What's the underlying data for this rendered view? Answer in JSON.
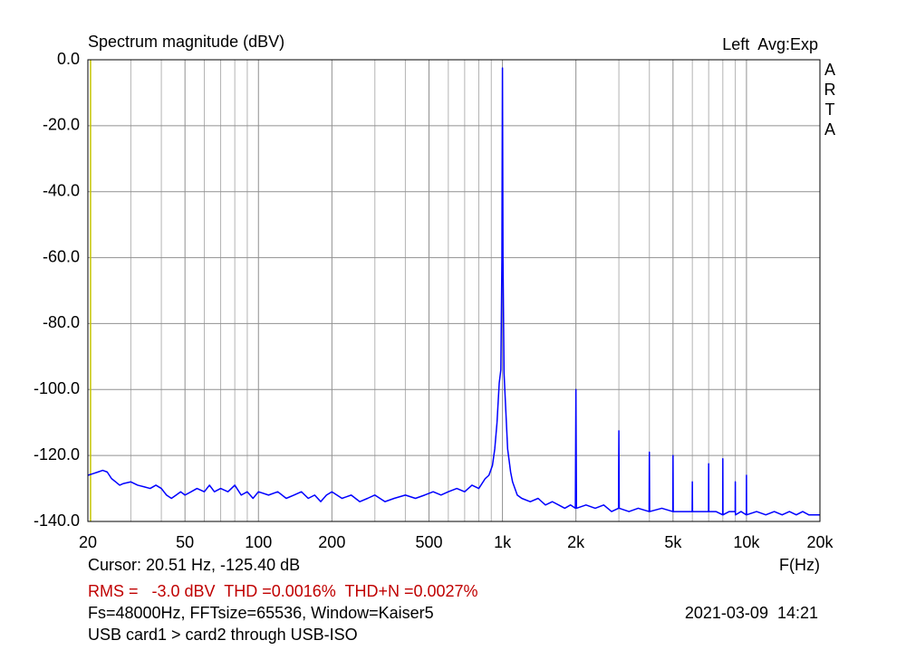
{
  "chart_data": {
    "type": "line",
    "title": "Spectrum magnitude (dBV)",
    "top_right": "Left  Avg:Exp",
    "side_label": "ARTA",
    "x_label": "F(Hz)",
    "log_x": true,
    "grid": true,
    "xlim": [
      20,
      20000
    ],
    "ylim": [
      -140,
      0
    ],
    "xticks": [
      20,
      50,
      100,
      200,
      500,
      {
        "value": 1000,
        "label": "1k"
      },
      {
        "value": 2000,
        "label": "2k"
      },
      {
        "value": 5000,
        "label": "5k"
      },
      {
        "value": 10000,
        "label": "10k"
      },
      {
        "value": 20000,
        "label": "20k"
      }
    ],
    "xminorticks": [
      30,
      40,
      60,
      70,
      80,
      90,
      300,
      400,
      600,
      700,
      800,
      900,
      3000,
      4000,
      6000,
      7000,
      8000,
      9000
    ],
    "yticks": [
      {
        "value": 0,
        "label": "0.0"
      },
      {
        "value": -20,
        "label": "-20.0"
      },
      {
        "value": -40,
        "label": "-40.0"
      },
      {
        "value": -60,
        "label": "-60.0"
      },
      {
        "value": -80,
        "label": "-80.0"
      },
      {
        "value": -100,
        "label": "-100.0"
      },
      {
        "value": -120,
        "label": "-120.0"
      },
      {
        "value": -140,
        "label": "-140.0"
      }
    ],
    "cursor_x": 20.51,
    "cursor_text": "Cursor: 20.51 Hz, -125.40 dB",
    "stats_text": "RMS =   -3.0 dBV  THD =0.0016%  THD+N =0.0027%",
    "settings_text": "Fs=48000Hz, FFTsize=65536, Window=Kaiser5",
    "date_text": "2021-03-09  14:21",
    "description": "USB card1 > card2 through USB-ISO",
    "x": [
      20,
      21,
      22,
      23,
      24,
      25,
      26,
      27,
      28,
      30,
      32,
      34,
      36,
      38,
      40,
      42,
      44,
      46,
      48,
      50,
      53,
      56,
      60,
      63,
      66,
      70,
      75,
      80,
      85,
      90,
      95,
      100,
      110,
      120,
      130,
      140,
      150,
      160,
      170,
      180,
      190,
      200,
      220,
      240,
      260,
      280,
      300,
      330,
      360,
      400,
      440,
      480,
      520,
      560,
      600,
      650,
      700,
      750,
      800,
      850,
      880,
      910,
      930,
      950,
      970,
      985,
      995,
      1000,
      1005,
      1015,
      1030,
      1050,
      1080,
      1100,
      1150,
      1200,
      1300,
      1400,
      1500,
      1600,
      1700,
      1800,
      1900,
      1990,
      2000,
      2010,
      2200,
      2400,
      2600,
      2800,
      2990,
      3000,
      3010,
      3300,
      3600,
      3990,
      4000,
      4010,
      4500,
      4990,
      5000,
      5010,
      5500,
      5990,
      6000,
      6010,
      6500,
      6990,
      7000,
      7010,
      7500,
      7990,
      8000,
      8010,
      8500,
      8990,
      9000,
      9010,
      9500,
      9990,
      10000,
      10010,
      11000,
      12000,
      13000,
      14000,
      15000,
      16000,
      17000,
      18000,
      19000,
      20000
    ],
    "series": [
      {
        "name": "Left",
        "color": "#0000ff",
        "values": [
          -126,
          -125.5,
          -125,
          -124.5,
          -125,
          -127,
          -128,
          -129,
          -128.5,
          -128,
          -129,
          -129.5,
          -130,
          -129,
          -130,
          -132,
          -133,
          -132,
          -131,
          -132,
          -131,
          -130,
          -131,
          -129,
          -131,
          -130,
          -131,
          -129,
          -132,
          -131,
          -133,
          -131,
          -132,
          -131,
          -133,
          -132,
          -131,
          -133,
          -132,
          -134,
          -132,
          -131,
          -133,
          -132,
          -134,
          -133,
          -132,
          -134,
          -133,
          -132,
          -133,
          -132,
          -131,
          -132,
          -131,
          -130,
          -131,
          -129,
          -130,
          -127,
          -126,
          -123,
          -118,
          -110,
          -98,
          -94,
          -60,
          -2.5,
          -60,
          -95,
          -105,
          -118,
          -125,
          -128,
          -132,
          -133,
          -134,
          -133,
          -135,
          -134,
          -135,
          -136,
          -135,
          -136,
          -100,
          -136,
          -135,
          -136,
          -135,
          -137,
          -136,
          -112.5,
          -136,
          -137,
          -136,
          -137,
          -119,
          -137,
          -136,
          -137,
          -120,
          -137,
          -137,
          -137,
          -128,
          -137,
          -137,
          -137,
          -122.5,
          -137,
          -137,
          -138,
          -121,
          -138,
          -137,
          -137,
          -128,
          -138,
          -137,
          -138,
          -126,
          -138,
          -137,
          -138,
          -137,
          -138,
          -137,
          -138,
          -137,
          -138,
          -138,
          -138
        ]
      }
    ]
  }
}
